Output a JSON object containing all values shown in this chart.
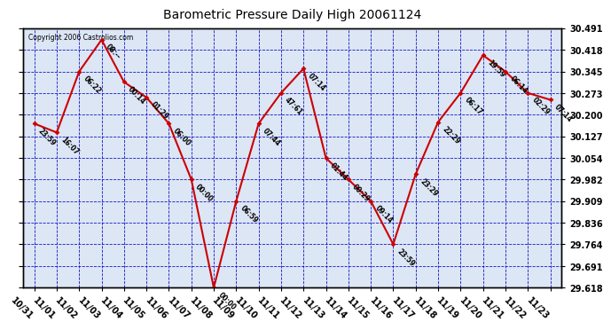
{
  "title": "Barometric Pressure Daily High 20061124",
  "copyright": "Copyright 2006 Castrolios.com",
  "background_color": "#ffffff",
  "plot_bg_color": "#dce6f5",
  "line_color": "#cc0000",
  "marker_color": "#cc0000",
  "grid_color": "#0000bb",
  "border_color": "#000000",
  "dates": [
    "10/31",
    "11/01",
    "11/02",
    "11/03",
    "11/04",
    "11/05",
    "11/06",
    "11/07",
    "11/08",
    "11/09",
    "11/10",
    "11/11",
    "11/12",
    "11/13",
    "11/14",
    "11/15",
    "11/16",
    "11/17",
    "11/18",
    "11/19",
    "11/20",
    "11/21",
    "11/22",
    "11/23"
  ],
  "values": [
    30.17,
    30.14,
    30.345,
    30.452,
    30.31,
    30.258,
    30.17,
    29.982,
    29.618,
    29.909,
    30.17,
    30.273,
    30.355,
    30.054,
    29.982,
    29.909,
    29.764,
    30.0,
    30.175,
    30.273,
    30.4,
    30.345,
    30.273,
    30.25
  ],
  "time_labels": [
    "23:59",
    "16:07",
    "06:22",
    "08:--",
    "00:14",
    "01:29",
    "06:00",
    "00:00",
    "00:00",
    "06:59",
    "07:44",
    "47:61",
    "07:14",
    "01:44",
    "00:29",
    "09:14",
    "23:59",
    "23:29",
    "22:29",
    "06:17",
    "19:59",
    "06:14",
    "02:29",
    "07:14"
  ],
  "ylim_min": 29.618,
  "ylim_max": 30.491,
  "yticks": [
    29.618,
    29.691,
    29.764,
    29.836,
    29.909,
    29.982,
    30.054,
    30.127,
    30.2,
    30.273,
    30.345,
    30.418,
    30.491
  ]
}
